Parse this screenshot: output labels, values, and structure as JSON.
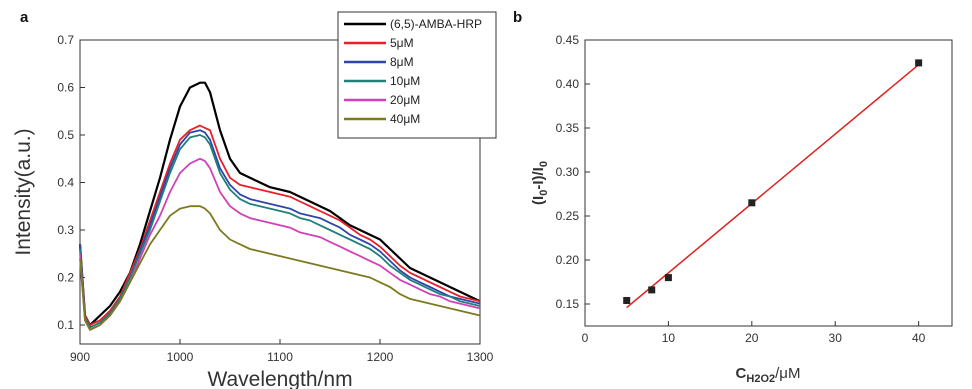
{
  "chart_data": [
    {
      "panel_label": "a",
      "type": "line",
      "xlabel": "Wavelength/nm",
      "ylabel": "Intensity(a.u.)",
      "xlim": [
        900,
        1300
      ],
      "ylim": [
        0.06,
        0.7
      ],
      "x_ticks": [
        900,
        1000,
        1100,
        1200,
        1300
      ],
      "y_ticks": [
        0.1,
        0.2,
        0.3,
        0.4,
        0.5,
        0.6,
        0.7
      ],
      "legend_position": "top-right",
      "x": [
        900,
        905,
        910,
        915,
        920,
        930,
        940,
        950,
        960,
        970,
        980,
        990,
        1000,
        1010,
        1020,
        1025,
        1030,
        1040,
        1050,
        1060,
        1070,
        1080,
        1090,
        1100,
        1110,
        1120,
        1130,
        1140,
        1150,
        1160,
        1170,
        1180,
        1190,
        1200,
        1210,
        1220,
        1230,
        1240,
        1250,
        1260,
        1270,
        1280,
        1290,
        1300
      ],
      "series": [
        {
          "name": "(6,5)-AMBA-HRP",
          "color": "#000000",
          "values": [
            0.27,
            0.12,
            0.1,
            0.11,
            0.12,
            0.14,
            0.17,
            0.21,
            0.27,
            0.34,
            0.41,
            0.49,
            0.56,
            0.6,
            0.61,
            0.61,
            0.59,
            0.51,
            0.45,
            0.42,
            0.41,
            0.4,
            0.39,
            0.385,
            0.38,
            0.37,
            0.36,
            0.35,
            0.34,
            0.325,
            0.31,
            0.3,
            0.29,
            0.28,
            0.26,
            0.24,
            0.22,
            0.21,
            0.2,
            0.19,
            0.18,
            0.17,
            0.16,
            0.15
          ]
        },
        {
          "name": "5μM",
          "color": "#e8202a",
          "values": [
            0.27,
            0.12,
            0.1,
            0.105,
            0.11,
            0.13,
            0.16,
            0.21,
            0.26,
            0.32,
            0.38,
            0.44,
            0.49,
            0.51,
            0.52,
            0.515,
            0.51,
            0.45,
            0.41,
            0.395,
            0.39,
            0.385,
            0.38,
            0.375,
            0.37,
            0.36,
            0.35,
            0.34,
            0.33,
            0.32,
            0.305,
            0.29,
            0.28,
            0.265,
            0.245,
            0.225,
            0.21,
            0.2,
            0.19,
            0.18,
            0.17,
            0.16,
            0.155,
            0.15
          ]
        },
        {
          "name": "8μM",
          "color": "#2e46a8",
          "values": [
            0.27,
            0.115,
            0.095,
            0.1,
            0.105,
            0.125,
            0.155,
            0.2,
            0.255,
            0.31,
            0.37,
            0.43,
            0.48,
            0.505,
            0.51,
            0.505,
            0.49,
            0.43,
            0.395,
            0.375,
            0.365,
            0.36,
            0.355,
            0.35,
            0.345,
            0.335,
            0.33,
            0.325,
            0.315,
            0.305,
            0.29,
            0.28,
            0.27,
            0.255,
            0.235,
            0.215,
            0.2,
            0.19,
            0.18,
            0.17,
            0.16,
            0.155,
            0.15,
            0.145
          ]
        },
        {
          "name": "10μM",
          "color": "#1f7f7a",
          "values": [
            0.26,
            0.115,
            0.095,
            0.1,
            0.105,
            0.125,
            0.155,
            0.2,
            0.25,
            0.3,
            0.36,
            0.42,
            0.47,
            0.495,
            0.5,
            0.495,
            0.48,
            0.42,
            0.385,
            0.365,
            0.355,
            0.35,
            0.345,
            0.34,
            0.335,
            0.325,
            0.32,
            0.31,
            0.3,
            0.29,
            0.28,
            0.27,
            0.26,
            0.245,
            0.225,
            0.21,
            0.195,
            0.185,
            0.175,
            0.165,
            0.16,
            0.15,
            0.145,
            0.14
          ]
        },
        {
          "name": "20μM",
          "color": "#d040b8",
          "values": [
            0.25,
            0.11,
            0.09,
            0.095,
            0.1,
            0.12,
            0.15,
            0.19,
            0.24,
            0.29,
            0.33,
            0.38,
            0.42,
            0.44,
            0.45,
            0.445,
            0.43,
            0.38,
            0.35,
            0.335,
            0.325,
            0.32,
            0.315,
            0.31,
            0.305,
            0.295,
            0.29,
            0.285,
            0.275,
            0.265,
            0.255,
            0.245,
            0.235,
            0.225,
            0.21,
            0.195,
            0.185,
            0.175,
            0.165,
            0.16,
            0.15,
            0.145,
            0.14,
            0.135
          ]
        },
        {
          "name": "40μM",
          "color": "#7d7a1e",
          "values": [
            0.24,
            0.11,
            0.09,
            0.095,
            0.1,
            0.12,
            0.15,
            0.19,
            0.23,
            0.27,
            0.3,
            0.33,
            0.345,
            0.35,
            0.35,
            0.345,
            0.335,
            0.3,
            0.28,
            0.27,
            0.26,
            0.255,
            0.25,
            0.245,
            0.24,
            0.235,
            0.23,
            0.225,
            0.22,
            0.215,
            0.21,
            0.205,
            0.2,
            0.19,
            0.18,
            0.165,
            0.155,
            0.15,
            0.145,
            0.14,
            0.135,
            0.13,
            0.125,
            0.12
          ]
        }
      ]
    },
    {
      "panel_label": "b",
      "type": "scatter",
      "xlabel_main": "C",
      "xlabel_sub": "H2O2",
      "xlabel_unit": "/μM",
      "ylabel_parts": [
        {
          "text": "(I",
          "sub": false
        },
        {
          "text": "0",
          "sub": true
        },
        {
          "text": "-I)/I",
          "sub": false
        },
        {
          "text": "0",
          "sub": true
        }
      ],
      "xlim": [
        0,
        44
      ],
      "ylim": [
        0.125,
        0.45
      ],
      "x_ticks": [
        0,
        10,
        20,
        30,
        40
      ],
      "y_ticks": [
        0.15,
        0.2,
        0.25,
        0.3,
        0.35,
        0.4,
        0.45
      ],
      "y_tick_labels": [
        "0.15",
        "0.20",
        "0.25",
        "0.30",
        "0.35",
        "0.40",
        "0.45"
      ],
      "points": [
        {
          "x": 5,
          "y": 0.154
        },
        {
          "x": 8,
          "y": 0.166
        },
        {
          "x": 10,
          "y": 0.18
        },
        {
          "x": 20,
          "y": 0.265
        },
        {
          "x": 40,
          "y": 0.424
        }
      ],
      "fit_line": {
        "x": [
          5,
          40
        ],
        "y": [
          0.146,
          0.422
        ],
        "color": "#e0201e"
      },
      "marker_color": "#222222"
    }
  ]
}
